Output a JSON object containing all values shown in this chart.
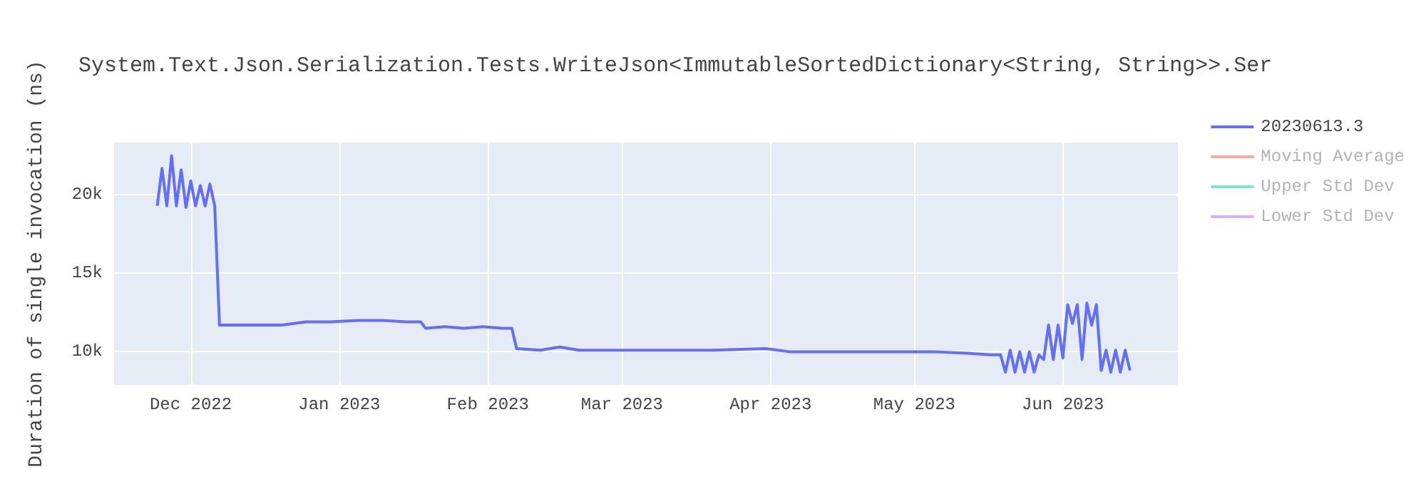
{
  "chart_data": {
    "type": "line",
    "title": "System.Text.Json.Serialization.Tests.WriteJson<ImmutableSortedDictionary<String, String>>.Ser",
    "ylabel": "Duration of single invocation (ns)",
    "x": [
      "2022-11-24",
      "2022-11-25",
      "2022-11-26",
      "2022-11-27",
      "2022-11-28",
      "2022-11-29",
      "2022-11-30",
      "2022-12-01",
      "2022-12-02",
      "2022-12-03",
      "2022-12-04",
      "2022-12-05",
      "2022-12-06",
      "2022-12-07",
      "2022-12-10",
      "2022-12-15",
      "2022-12-20",
      "2022-12-25",
      "2022-12-30",
      "2023-01-05",
      "2023-01-10",
      "2023-01-15",
      "2023-01-18",
      "2023-01-19",
      "2023-01-23",
      "2023-01-27",
      "2023-01-31",
      "2023-02-04",
      "2023-02-06",
      "2023-02-07",
      "2023-02-12",
      "2023-02-16",
      "2023-02-20",
      "2023-03-01",
      "2023-03-10",
      "2023-03-20",
      "2023-03-31",
      "2023-04-05",
      "2023-04-15",
      "2023-04-25",
      "2023-05-05",
      "2023-05-12",
      "2023-05-17",
      "2023-05-19",
      "2023-05-20",
      "2023-05-21",
      "2023-05-22",
      "2023-05-23",
      "2023-05-24",
      "2023-05-25",
      "2023-05-26",
      "2023-05-27",
      "2023-05-28",
      "2023-05-29",
      "2023-05-30",
      "2023-05-31",
      "2023-06-01",
      "2023-06-02",
      "2023-06-03",
      "2023-06-04",
      "2023-06-05",
      "2023-06-06",
      "2023-06-07",
      "2023-06-08",
      "2023-06-09",
      "2023-06-10",
      "2023-06-11",
      "2023-06-12",
      "2023-06-13",
      "2023-06-14",
      "2023-06-15"
    ],
    "series": [
      {
        "name": "20230613.3",
        "color": "#636efa",
        "values": [
          19300,
          21700,
          19300,
          22500,
          19300,
          21600,
          19200,
          20900,
          19300,
          20600,
          19300,
          20700,
          19300,
          11700,
          11700,
          11700,
          11700,
          11900,
          11900,
          12000,
          12000,
          11900,
          11900,
          11500,
          11600,
          11500,
          11600,
          11500,
          11500,
          10200,
          10100,
          10300,
          10100,
          10100,
          10100,
          10100,
          10200,
          10000,
          10000,
          10000,
          10000,
          9900,
          9800,
          9800,
          8700,
          10100,
          8700,
          10000,
          8700,
          10000,
          8700,
          9800,
          9500,
          11700,
          9500,
          11700,
          9600,
          13000,
          11800,
          13000,
          9500,
          13100,
          11700,
          13000,
          8800,
          10100,
          8700,
          10100,
          8700,
          10100,
          8800
        ]
      },
      {
        "name": "Moving Average",
        "color": "#ef553b",
        "values": [
          null,
          null,
          null,
          null,
          null,
          null,
          null,
          null,
          null,
          null,
          null,
          null,
          null,
          null,
          null,
          null,
          null,
          null,
          null,
          null,
          null,
          null,
          null,
          null,
          null,
          null,
          null,
          null,
          null,
          null,
          null,
          null,
          null,
          null,
          null,
          null,
          null,
          null,
          null,
          null,
          null,
          null,
          null,
          null,
          null,
          null,
          null,
          null,
          null,
          null,
          null,
          null,
          null,
          null,
          null,
          null,
          null,
          null,
          null,
          null,
          null,
          null,
          null,
          null,
          null,
          null,
          null,
          null,
          null,
          null,
          null
        ]
      },
      {
        "name": "Upper Std Dev",
        "color": "#00cc96",
        "values": [
          null,
          null,
          null,
          null,
          null,
          null,
          null,
          null,
          null,
          null,
          null,
          null,
          null,
          null,
          null,
          null,
          null,
          null,
          null,
          null,
          null,
          null,
          null,
          null,
          null,
          null,
          null,
          null,
          null,
          null,
          null,
          null,
          null,
          null,
          null,
          null,
          null,
          null,
          null,
          null,
          null,
          null,
          null,
          null,
          null,
          null,
          null,
          null,
          null,
          null,
          null,
          null,
          null,
          null,
          null,
          null,
          null,
          null,
          null,
          null,
          null,
          null,
          null,
          null,
          null,
          null,
          null,
          null,
          null,
          null,
          null
        ]
      },
      {
        "name": "Lower Std Dev",
        "color": "#ab63fa",
        "values": [
          null,
          null,
          null,
          null,
          null,
          null,
          null,
          null,
          null,
          null,
          null,
          null,
          null,
          null,
          null,
          null,
          null,
          null,
          null,
          null,
          null,
          null,
          null,
          null,
          null,
          null,
          null,
          null,
          null,
          null,
          null,
          null,
          null,
          null,
          null,
          null,
          null,
          null,
          null,
          null,
          null,
          null,
          null,
          null,
          null,
          null,
          null,
          null,
          null,
          null,
          null,
          null,
          null,
          null,
          null,
          null,
          null,
          null,
          null,
          null,
          null,
          null,
          null,
          null,
          null,
          null,
          null,
          null,
          null,
          null,
          null
        ]
      }
    ],
    "xlim": [
      "2022-11-15",
      "2023-06-25"
    ],
    "xticks": [
      {
        "value": "2022-12-01",
        "label": "Dec 2022"
      },
      {
        "value": "2023-01-01",
        "label": "Jan 2023"
      },
      {
        "value": "2023-02-01",
        "label": "Feb 2023"
      },
      {
        "value": "2023-03-01",
        "label": "Mar 2023"
      },
      {
        "value": "2023-04-01",
        "label": "Apr 2023"
      },
      {
        "value": "2023-05-01",
        "label": "May 2023"
      },
      {
        "value": "2023-06-01",
        "label": "Jun 2023"
      }
    ],
    "ylim": [
      7880,
      23340
    ],
    "yticks": [
      {
        "value": 10000,
        "label": "10k"
      },
      {
        "value": 15000,
        "label": "15k"
      },
      {
        "value": 20000,
        "label": "20k"
      }
    ],
    "grid": true,
    "legend": "top right",
    "marker": "none",
    "line_style": "solid"
  }
}
